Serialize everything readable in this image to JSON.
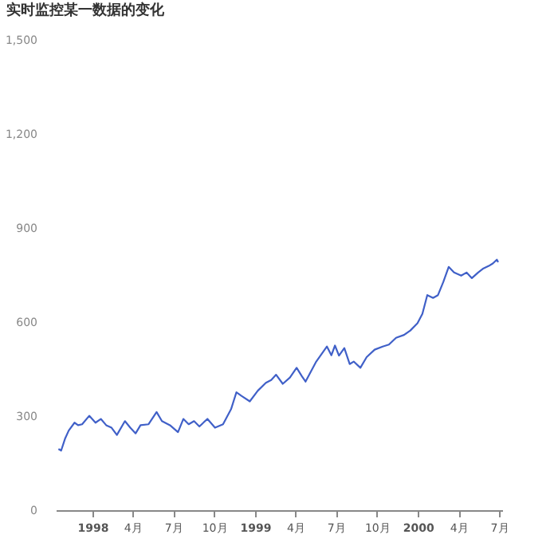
{
  "chart_data": {
    "type": "line",
    "title": "实时监控某一数据的变化",
    "x": [
      "1997-10-17",
      "1997-10-23",
      "1997-11-01",
      "1997-11-09",
      "1997-11-22",
      "1997-11-30",
      "1997-12-09",
      "1997-12-25",
      "1998-01-08",
      "1998-01-20",
      "1998-02-01",
      "1998-02-13",
      "1998-02-25",
      "1998-03-15",
      "1998-03-27",
      "1998-04-08",
      "1998-04-19",
      "1998-05-07",
      "1998-05-25",
      "1998-06-06",
      "1998-06-24",
      "1998-07-12",
      "1998-07-24",
      "1998-08-05",
      "1998-08-17",
      "1998-08-29",
      "1998-09-16",
      "1998-10-03",
      "1998-10-21",
      "1998-11-08",
      "1998-11-20",
      "1998-12-02",
      "1998-12-20",
      "1999-01-07",
      "1999-01-25",
      "1999-02-06",
      "1999-02-17",
      "1999-03-04",
      "1999-03-20",
      "1999-04-04",
      "1999-04-16",
      "1999-04-24",
      "1999-05-18",
      "1999-06-11",
      "1999-06-21",
      "1999-06-29",
      "1999-07-08",
      "1999-07-20",
      "1999-08-01",
      "1999-08-10",
      "1999-08-25",
      "1999-09-08",
      "1999-09-26",
      "1999-10-14",
      "1999-10-28",
      "1999-11-13",
      "1999-12-01",
      "1999-12-15",
      "1999-12-31",
      "2000-01-11",
      "2000-01-22",
      "2000-02-04",
      "2000-02-15",
      "2000-02-27",
      "2000-03-10",
      "2000-03-22",
      "2000-04-07",
      "2000-04-19",
      "2000-05-01",
      "2000-05-15",
      "2000-05-27",
      "2000-06-08",
      "2000-06-17",
      "2000-06-26",
      "2000-06-29"
    ],
    "series": [
      {
        "color": "#4060c8",
        "values": [
          195,
          190,
          229,
          254,
          279,
          271,
          274,
          301,
          279,
          291,
          271,
          263,
          240,
          284,
          263,
          245,
          271,
          274,
          313,
          284,
          271,
          249,
          291,
          274,
          284,
          267,
          291,
          263,
          274,
          322,
          376,
          364,
          347,
          381,
          406,
          415,
          432,
          403,
          423,
          454,
          427,
          410,
          474,
          522,
          494,
          525,
          493,
          517,
          466,
          474,
          454,
          488,
          512,
          522,
          528,
          550,
          559,
          573,
          596,
          626,
          686,
          677,
          686,
          728,
          776,
          758,
          748,
          758,
          740,
          758,
          771,
          779,
          787,
          799,
          791
        ]
      }
    ],
    "xlim": [
      "1997-10-11",
      "2000-07-08"
    ],
    "xticks": [
      {
        "value": "1998-01-01",
        "label": "1998"
      },
      {
        "value": "1998-04-01",
        "label": "4月"
      },
      {
        "value": "1998-07-01",
        "label": "7月"
      },
      {
        "value": "1998-10-01",
        "label": "10月"
      },
      {
        "value": "1999-01-01",
        "label": "1999"
      },
      {
        "value": "1999-04-01",
        "label": "4月"
      },
      {
        "value": "1999-07-01",
        "label": "7月"
      },
      {
        "value": "1999-10-01",
        "label": "10月"
      },
      {
        "value": "2000-01-01",
        "label": "2000"
      },
      {
        "value": "2000-04-01",
        "label": "4月"
      },
      {
        "value": "2000-07-01",
        "label": "7月"
      }
    ],
    "ylim": [
      0,
      1500
    ],
    "yticks": [
      0,
      300,
      600,
      900,
      {
        "value": 1200,
        "label": "1,200"
      },
      {
        "value": 1500,
        "label": "1,500"
      }
    ],
    "grid": false,
    "marker": "none",
    "line_style": "solid"
  }
}
